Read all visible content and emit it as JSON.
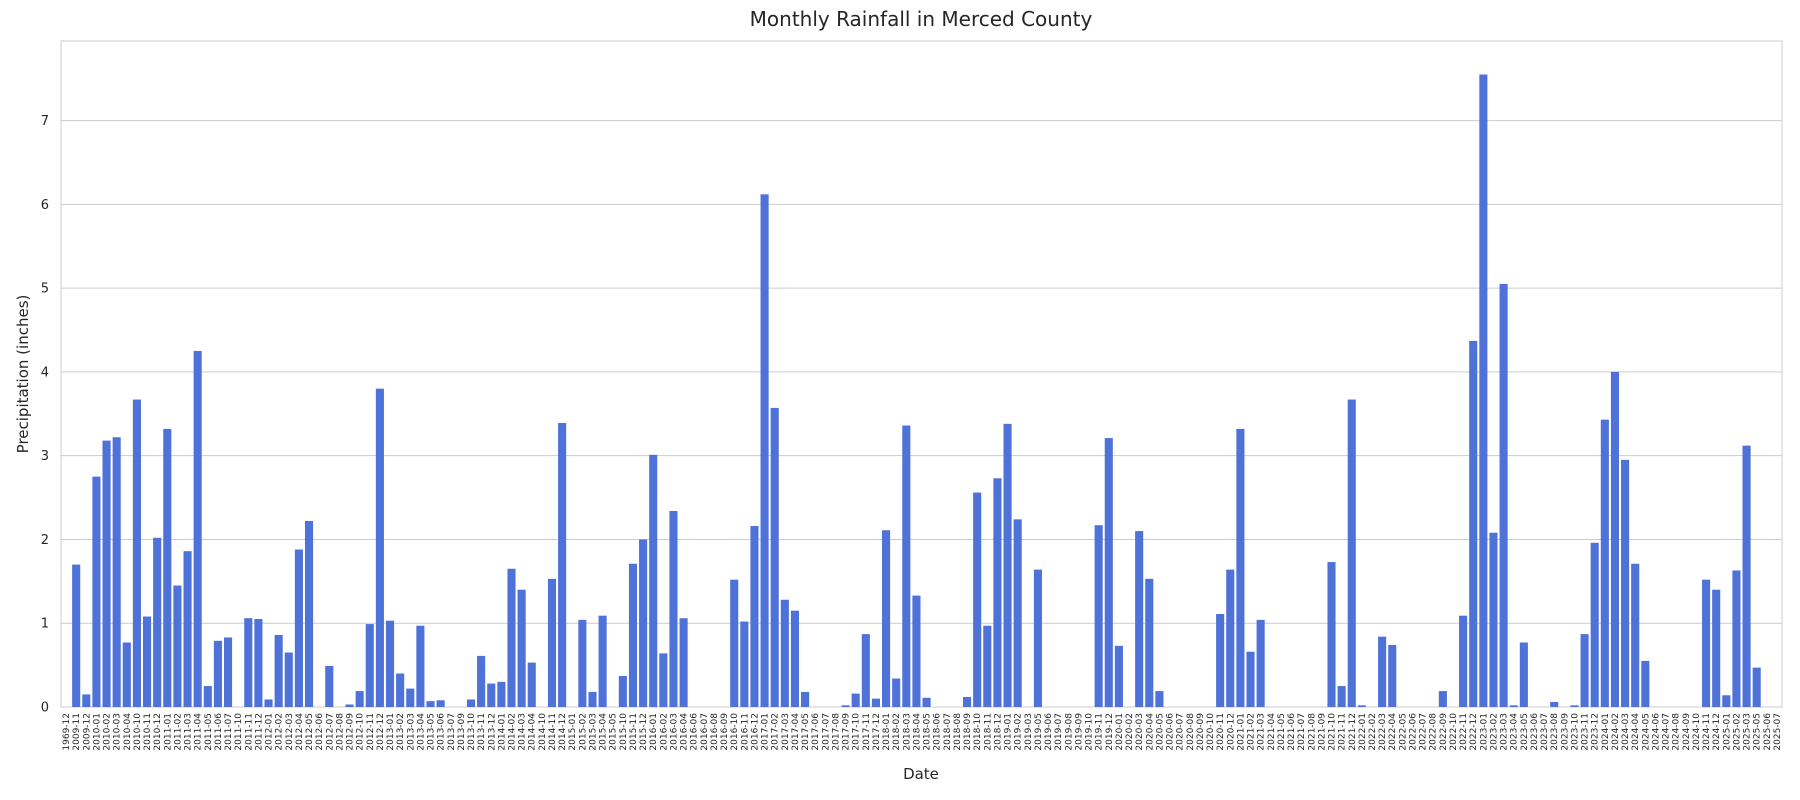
{
  "chart_data": {
    "type": "bar",
    "title": "Monthly Rainfall in Merced County",
    "xlabel": "Date",
    "ylabel": "Precipitation (inches)",
    "color": "#4f72d8",
    "grid": true,
    "categories": [
      "1969-12",
      "2009-11",
      "2009-12",
      "2010-01",
      "2010-02",
      "2010-03",
      "2010-04",
      "2010-10",
      "2010-11",
      "2010-12",
      "2011-01",
      "2011-02",
      "2011-03",
      "2011-04",
      "2011-05",
      "2011-06",
      "2011-07",
      "2011-10",
      "2011-11",
      "2011-12",
      "2012-01",
      "2012-02",
      "2012-03",
      "2012-04",
      "2012-05",
      "2012-06",
      "2012-07",
      "2012-08",
      "2012-09",
      "2012-10",
      "2012-11",
      "2012-12",
      "2013-01",
      "2013-02",
      "2013-03",
      "2013-04",
      "2013-05",
      "2013-06",
      "2013-07",
      "2013-09",
      "2013-10",
      "2013-11",
      "2013-12",
      "2014-01",
      "2014-02",
      "2014-03",
      "2014-04",
      "2014-10",
      "2014-11",
      "2014-12",
      "2015-01",
      "2015-02",
      "2015-03",
      "2015-04",
      "2015-05",
      "2015-10",
      "2015-11",
      "2015-12",
      "2016-01",
      "2016-02",
      "2016-03",
      "2016-04",
      "2016-06",
      "2016-07",
      "2016-08",
      "2016-09",
      "2016-10",
      "2016-11",
      "2016-12",
      "2017-01",
      "2017-02",
      "2017-03",
      "2017-04",
      "2017-05",
      "2017-06",
      "2017-07",
      "2017-08",
      "2017-09",
      "2017-10",
      "2017-11",
      "2017-12",
      "2018-01",
      "2018-02",
      "2018-03",
      "2018-04",
      "2018-05",
      "2018-06",
      "2018-07",
      "2018-08",
      "2018-09",
      "2018-10",
      "2018-11",
      "2018-12",
      "2019-01",
      "2019-02",
      "2019-03",
      "2019-05",
      "2019-06",
      "2019-07",
      "2019-08",
      "2019-09",
      "2019-10",
      "2019-11",
      "2019-12",
      "2020-01",
      "2020-02",
      "2020-03",
      "2020-04",
      "2020-05",
      "2020-06",
      "2020-07",
      "2020-08",
      "2020-09",
      "2020-10",
      "2020-11",
      "2020-12",
      "2021-01",
      "2021-02",
      "2021-03",
      "2021-04",
      "2021-05",
      "2021-06",
      "2021-07",
      "2021-08",
      "2021-09",
      "2021-10",
      "2021-11",
      "2021-12",
      "2022-01",
      "2022-02",
      "2022-03",
      "2022-04",
      "2022-05",
      "2022-06",
      "2022-07",
      "2022-08",
      "2022-09",
      "2022-10",
      "2022-11",
      "2022-12",
      "2023-01",
      "2023-02",
      "2023-03",
      "2023-04",
      "2023-05",
      "2023-06",
      "2023-07",
      "2023-08",
      "2023-09",
      "2023-10",
      "2023-11",
      "2023-12",
      "2024-01",
      "2024-02",
      "2024-03",
      "2024-04",
      "2024-05",
      "2024-06",
      "2024-07",
      "2024-08",
      "2024-09",
      "2024-10",
      "2024-11",
      "2024-12",
      "2025-01",
      "2025-02",
      "2025-03",
      "2025-05",
      "2025-06",
      "2025-07"
    ],
    "values": [
      0,
      1.7,
      0.15,
      2.75,
      3.18,
      3.22,
      0.77,
      3.67,
      1.08,
      2.02,
      3.32,
      1.45,
      1.86,
      4.25,
      0.25,
      0.79,
      0.83,
      0,
      1.06,
      1.05,
      0.09,
      0.86,
      0.65,
      1.88,
      2.22,
      0,
      0.49,
      0,
      0.03,
      0.19,
      0.99,
      3.8,
      1.03,
      0.4,
      0.22,
      0.97,
      0.07,
      0.08,
      0,
      0,
      0.09,
      0.61,
      0.28,
      0.3,
      1.65,
      1.4,
      0.53,
      0,
      1.53,
      3.39,
      0,
      1.04,
      0.18,
      1.09,
      0,
      0.37,
      1.71,
      2.0,
      3.01,
      0.64,
      2.34,
      1.06,
      0,
      0,
      0,
      0,
      1.52,
      1.02,
      2.16,
      6.12,
      3.57,
      1.28,
      1.15,
      0.18,
      0,
      0,
      0,
      0.02,
      0.16,
      0.87,
      0.1,
      2.11,
      0.34,
      3.36,
      1.33,
      0.11,
      0,
      0,
      0,
      0.12,
      2.56,
      0.97,
      2.73,
      3.38,
      2.24,
      0,
      1.64,
      0,
      0,
      0,
      0,
      0,
      2.17,
      3.21,
      0.73,
      0,
      2.1,
      1.53,
      0.19,
      0,
      0,
      0,
      0,
      0,
      1.11,
      1.64,
      3.32,
      0.66,
      1.04,
      0,
      0,
      0,
      0,
      0,
      0,
      1.73,
      0.25,
      3.67,
      0.02,
      0,
      0.84,
      0.74,
      0,
      0,
      0,
      0,
      0.19,
      0,
      1.09,
      4.37,
      7.55,
      2.08,
      5.05,
      0.02,
      0.77,
      0,
      0,
      0.06,
      0,
      0.02,
      0.87,
      1.96,
      3.43,
      4.0,
      2.95,
      1.71,
      0.55,
      0,
      0,
      0,
      0,
      0,
      1.52,
      1.4,
      0.14,
      1.63,
      3.12,
      0.47,
      0,
      0
    ],
    "ylim": [
      0,
      7.95
    ],
    "yticks": [
      0,
      1,
      2,
      3,
      4,
      5,
      6,
      7
    ]
  }
}
